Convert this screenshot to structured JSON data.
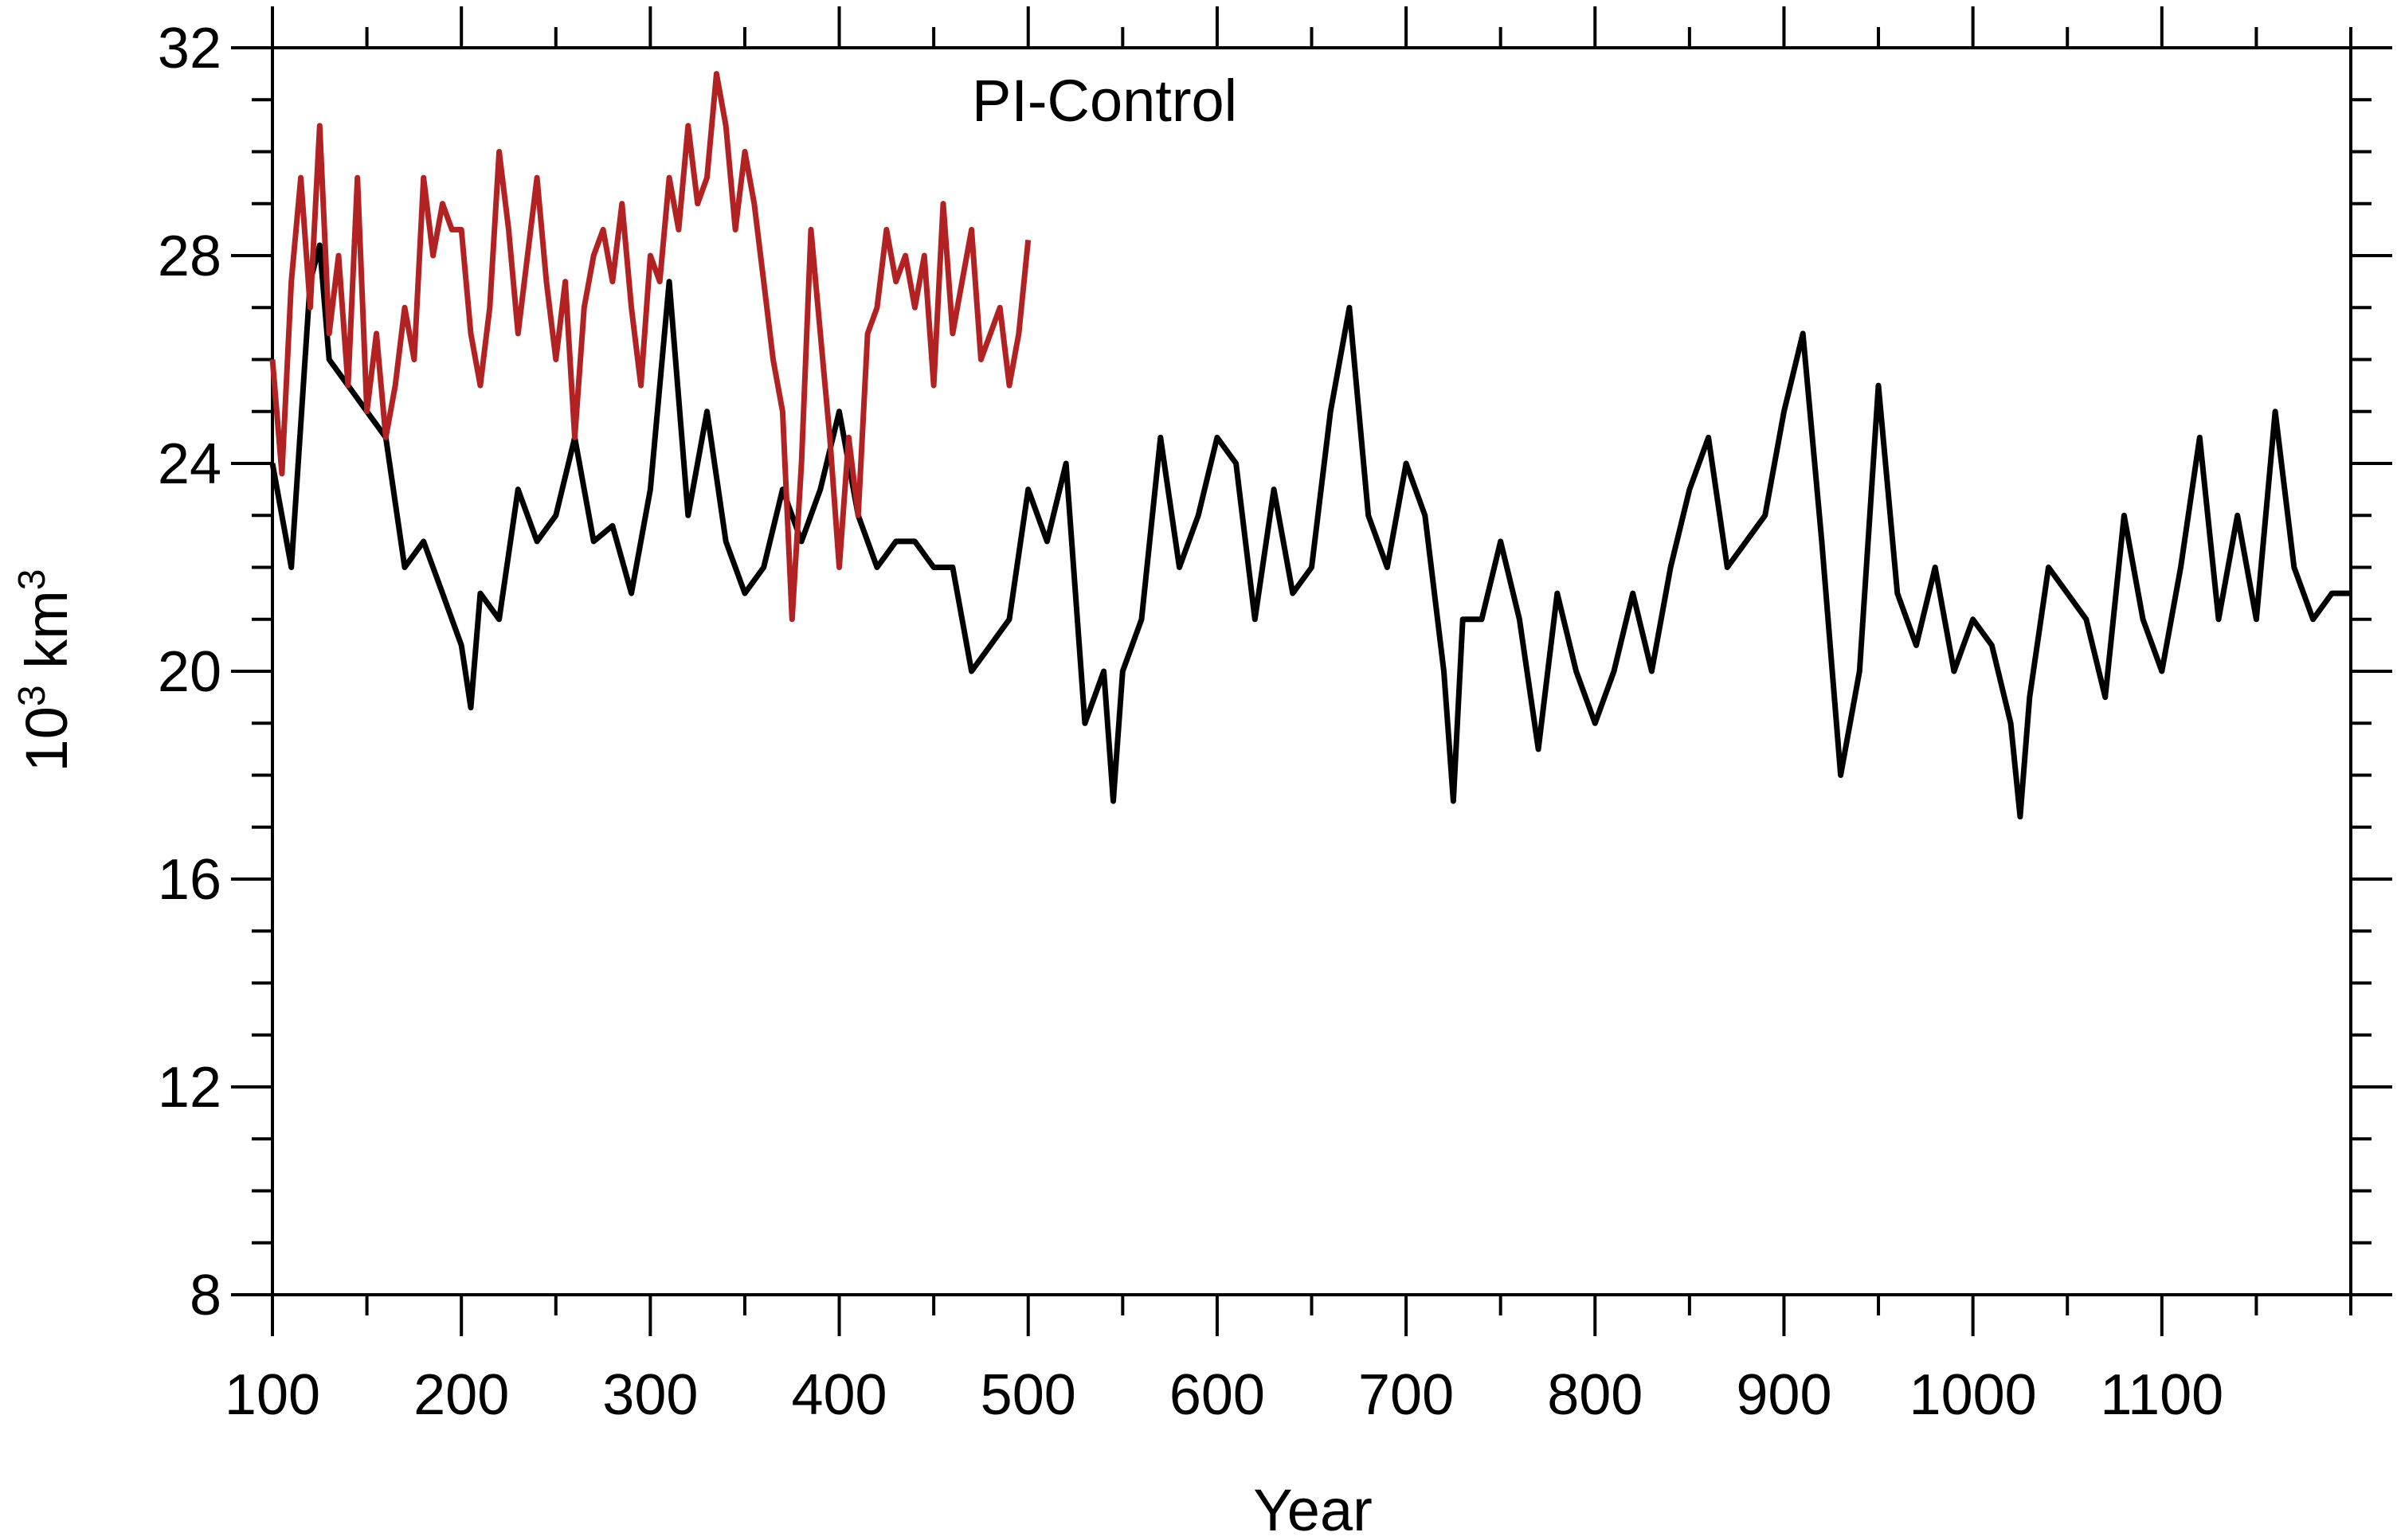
{
  "chart_data": {
    "type": "line",
    "title": "",
    "annotation": "PI-Control",
    "xlabel": "Year",
    "ylabel_base": "10",
    "ylabel_sup": "3",
    "ylabel_unit": " km",
    "ylabel_unit_sup": "3",
    "xlim": [
      100,
      1200
    ],
    "ylim": [
      8,
      32
    ],
    "x_ticks": [
      100,
      200,
      300,
      400,
      500,
      600,
      700,
      800,
      900,
      1000,
      1100
    ],
    "x_tick_labels": [
      "100",
      "200",
      "300",
      "400",
      "500",
      "600",
      "700",
      "800",
      "900",
      "1000",
      "1100"
    ],
    "y_ticks": [
      8,
      12,
      16,
      20,
      24,
      28,
      32
    ],
    "y_tick_labels": [
      "8",
      "12",
      "16",
      "20",
      "24",
      "28",
      "32"
    ],
    "y_minor_step": 1,
    "x_minor_step": 50,
    "grid": false,
    "legend": "none",
    "series": [
      {
        "color": "#000000",
        "x": [
          100,
          110,
          120,
          125,
          130,
          140,
          150,
          160,
          170,
          180,
          190,
          200,
          205,
          210,
          220,
          230,
          240,
          250,
          260,
          270,
          280,
          290,
          300,
          310,
          320,
          330,
          340,
          350,
          360,
          370,
          380,
          390,
          400,
          410,
          420,
          430,
          440,
          450,
          460,
          470,
          480,
          490,
          500,
          510,
          520,
          530,
          540,
          545,
          550,
          560,
          570,
          580,
          590,
          600,
          610,
          620,
          630,
          640,
          650,
          660,
          670,
          680,
          690,
          700,
          710,
          720,
          725,
          730,
          740,
          750,
          760,
          770,
          780,
          790,
          800,
          810,
          820,
          830,
          840,
          850,
          860,
          870,
          880,
          890,
          900,
          910,
          920,
          930,
          940,
          950,
          960,
          970,
          980,
          990,
          1000,
          1010,
          1020,
          1025,
          1030,
          1040,
          1050,
          1060,
          1070,
          1080,
          1090,
          1100,
          1110,
          1120,
          1130,
          1140,
          1150,
          1160,
          1170,
          1180,
          1190,
          1200
        ],
        "y": [
          24.0,
          22.0,
          27.5,
          28.2,
          26.0,
          25.5,
          25.0,
          24.5,
          22.0,
          22.5,
          21.5,
          20.5,
          19.3,
          21.5,
          21.0,
          23.5,
          22.5,
          23.0,
          24.5,
          22.5,
          22.8,
          21.5,
          23.5,
          27.5,
          23.0,
          25.0,
          22.5,
          21.5,
          22.0,
          23.5,
          22.5,
          23.5,
          25.0,
          23.0,
          22.0,
          22.5,
          22.5,
          22.0,
          22.0,
          20.0,
          20.5,
          21.0,
          23.5,
          22.5,
          24.0,
          19.0,
          20.0,
          17.5,
          20.0,
          21.0,
          24.5,
          22.0,
          23.0,
          24.5,
          24.0,
          21.0,
          23.5,
          21.5,
          22.0,
          25.0,
          27.0,
          23.0,
          22.0,
          24.0,
          23.0,
          20.0,
          17.5,
          21.0,
          21.0,
          22.5,
          21.0,
          18.5,
          21.5,
          20.0,
          19.0,
          20.0,
          21.5,
          20.0,
          22.0,
          23.5,
          24.5,
          22.0,
          22.5,
          23.0,
          25.0,
          26.5,
          22.5,
          18.0,
          20.0,
          25.5,
          21.5,
          20.5,
          22.0,
          20.0,
          21.0,
          20.5,
          19.0,
          17.2,
          19.5,
          22.0,
          21.5,
          21.0,
          19.5,
          23.0,
          21.0,
          20.0,
          22.0,
          24.5,
          21.0,
          23.0,
          21.0,
          25.0,
          22.0,
          21.0,
          21.5,
          21.5
        ]
      },
      {
        "color": "#b22222",
        "x": [
          100,
          105,
          110,
          115,
          120,
          125,
          130,
          135,
          140,
          145,
          150,
          155,
          160,
          165,
          170,
          175,
          180,
          185,
          190,
          195,
          200,
          205,
          210,
          215,
          220,
          225,
          230,
          235,
          240,
          245,
          250,
          255,
          260,
          265,
          270,
          275,
          280,
          285,
          290,
          295,
          300,
          305,
          310,
          315,
          320,
          325,
          330,
          335,
          340,
          345,
          350,
          355,
          360,
          365,
          370,
          375,
          380,
          385,
          390,
          395,
          400,
          405,
          410,
          415,
          420,
          425,
          430,
          435,
          440,
          445,
          450,
          455,
          460,
          465,
          470,
          475,
          480,
          485,
          490,
          495,
          500
        ],
        "y": [
          26.0,
          23.8,
          27.5,
          29.5,
          27.0,
          30.5,
          26.5,
          28.0,
          25.5,
          29.5,
          25.0,
          26.5,
          24.5,
          25.5,
          27.0,
          26.0,
          29.5,
          28.0,
          29.0,
          28.5,
          28.5,
          26.5,
          25.5,
          27.0,
          30.0,
          28.5,
          26.5,
          28.0,
          29.5,
          27.5,
          26.0,
          27.5,
          24.5,
          27.0,
          28.0,
          28.5,
          27.5,
          29.0,
          27.0,
          25.5,
          28.0,
          27.5,
          29.5,
          28.5,
          30.5,
          29.0,
          29.5,
          31.5,
          30.5,
          28.5,
          30.0,
          29.0,
          27.5,
          26.0,
          25.0,
          21.0,
          24.0,
          28.5,
          26.5,
          24.5,
          22.0,
          24.5,
          23.0,
          26.5,
          27.0,
          28.5,
          27.5,
          28.0,
          27.0,
          28.0,
          25.5,
          29.0,
          26.5,
          27.5,
          28.5,
          26.0,
          26.5,
          27.0,
          25.5,
          26.5,
          28.3
        ]
      }
    ]
  }
}
